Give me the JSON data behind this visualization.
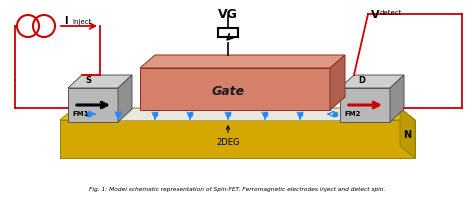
{
  "fig_width": 4.74,
  "fig_height": 1.98,
  "dpi": 100,
  "bg_color": "#ffffff",
  "gate_color": "#d4806a",
  "gate_top_color": "#e09a84",
  "gate_side_color": "#b06050",
  "substrate_color": "#d4a800",
  "substrate_top_color": "#e8c000",
  "fm_front_color": "#b8b8b8",
  "fm_top_color": "#d0d0d0",
  "fm_side_color": "#909090",
  "n_label": "N",
  "gate_label": "Gate",
  "fm1_label": "FM1",
  "fm2_label": "FM2",
  "s_label": "S",
  "d_label": "D",
  "vg_label": "VG",
  "deg_label": "2DEG",
  "black": "#000000",
  "red": "#cc0000",
  "blue": "#2288ff",
  "circuit_red": "#cc0000"
}
